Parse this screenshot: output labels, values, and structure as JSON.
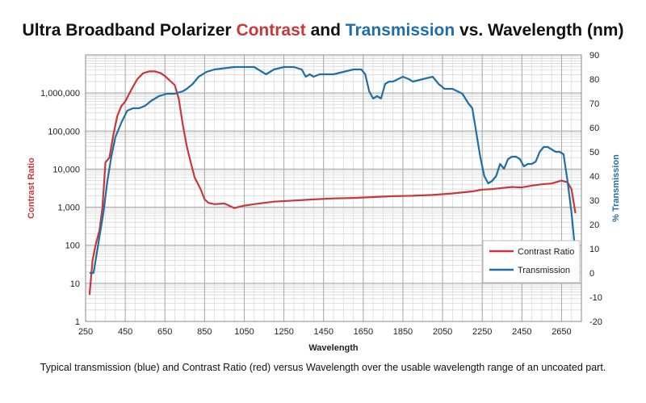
{
  "chart_data": {
    "type": "line",
    "title_parts": [
      {
        "text": "Ultra Broadband Polarizer ",
        "color": "#111111"
      },
      {
        "text": "Contrast",
        "color": "#c8373a"
      },
      {
        "text": " and ",
        "color": "#111111"
      },
      {
        "text": "Transmission",
        "color": "#1f6fa6"
      },
      {
        "text": " vs. Wavelength (nm)",
        "color": "#111111"
      }
    ],
    "xlabel": "Wavelength",
    "ylabel_left": "Contrast Ratio",
    "ylabel_right": "% Transmission",
    "xlim": [
      250,
      2750
    ],
    "ylim_left": [
      1,
      10000000
    ],
    "ylim_right": [
      -20,
      90
    ],
    "left_scale": "log",
    "x_ticks": [
      250,
      450,
      650,
      850,
      1050,
      1250,
      1450,
      1650,
      1850,
      2050,
      2250,
      2450,
      2650
    ],
    "x_tick_labels": [
      "250",
      "450",
      "650",
      "850",
      "1050",
      "1250",
      "1450",
      "1650",
      "1850",
      "2050",
      "2250",
      "2450",
      "2650"
    ],
    "y_left_ticks": [
      1,
      10,
      100,
      1000,
      10000,
      100000,
      1000000
    ],
    "y_left_tick_labels": [
      "1",
      "10",
      "100",
      "1,000",
      "10,000",
      "100,000",
      "1,000,000"
    ],
    "y_right_ticks": [
      -20,
      -10,
      0,
      10,
      20,
      30,
      40,
      50,
      60,
      70,
      80,
      90
    ],
    "y_right_tick_labels": [
      "-20",
      "-10",
      "0",
      "10",
      "20",
      "30",
      "40",
      "50",
      "60",
      "70",
      "80",
      "90"
    ],
    "grid": true,
    "legend_position": "bottom-right",
    "series": [
      {
        "name": "Contrast Ratio",
        "axis": "left",
        "color": "#c8373a",
        "x": [
          270,
          285,
          300,
          320,
          335,
          350,
          370,
          390,
          410,
          430,
          450,
          480,
          510,
          540,
          570,
          600,
          630,
          650,
          680,
          700,
          720,
          740,
          760,
          780,
          800,
          830,
          850,
          870,
          900,
          950,
          1000,
          1050,
          1100,
          1150,
          1200,
          1300,
          1400,
          1500,
          1600,
          1700,
          1800,
          1900,
          2000,
          2100,
          2200,
          2250,
          2300,
          2350,
          2400,
          2450,
          2500,
          2550,
          2600,
          2650,
          2680,
          2700,
          2720
        ],
        "y": [
          5,
          40,
          100,
          250,
          1000,
          15000,
          20000,
          80000,
          250000,
          450000,
          600000,
          1200000,
          2300000,
          3300000,
          3700000,
          3700000,
          3300000,
          2800000,
          2000000,
          1600000,
          700000,
          150000,
          40000,
          15000,
          6000,
          3000,
          1600,
          1300,
          1200,
          1250,
          950,
          1100,
          1200,
          1300,
          1400,
          1500,
          1600,
          1700,
          1750,
          1850,
          1950,
          2000,
          2100,
          2300,
          2600,
          2900,
          3000,
          3200,
          3400,
          3300,
          3700,
          4000,
          4200,
          5000,
          4500,
          3000,
          700
        ]
      },
      {
        "name": "Transmission",
        "axis": "right",
        "color": "#1f6fa6",
        "x": [
          270,
          290,
          300,
          320,
          340,
          360,
          380,
          400,
          430,
          460,
          490,
          520,
          550,
          580,
          620,
          660,
          700,
          740,
          760,
          790,
          820,
          860,
          900,
          950,
          1000,
          1050,
          1100,
          1140,
          1160,
          1200,
          1250,
          1300,
          1340,
          1360,
          1380,
          1400,
          1430,
          1460,
          1500,
          1550,
          1600,
          1640,
          1660,
          1680,
          1700,
          1720,
          1740,
          1760,
          1780,
          1800,
          1850,
          1880,
          1900,
          1950,
          2000,
          2030,
          2060,
          2100,
          2150,
          2180,
          2200,
          2220,
          2240,
          2260,
          2280,
          2300,
          2320,
          2340,
          2360,
          2380,
          2400,
          2420,
          2440,
          2460,
          2480,
          2500,
          2520,
          2540,
          2560,
          2580,
          2600,
          2620,
          2640,
          2660,
          2680,
          2700,
          2720
        ],
        "y": [
          0,
          0,
          5,
          15,
          25,
          38,
          48,
          56,
          62,
          67,
          68,
          68,
          69,
          71,
          73,
          74,
          74,
          75,
          76,
          78,
          81,
          83,
          84,
          84.5,
          85,
          85,
          85,
          83,
          82,
          84,
          85,
          85,
          84,
          81,
          82,
          81,
          82,
          82,
          82,
          83,
          84,
          84,
          82,
          75,
          72,
          73,
          72,
          78,
          79,
          79,
          81,
          80,
          79,
          80,
          81,
          78,
          76,
          76,
          74,
          70,
          68,
          58,
          48,
          40,
          37,
          38,
          40,
          45,
          43,
          47,
          48,
          48,
          47,
          44,
          45,
          45,
          46,
          50,
          52,
          52,
          51,
          50,
          50,
          49,
          38,
          25,
          8
        ]
      }
    ]
  },
  "caption": "Typical transmission (blue) and Contrast Ratio (red) versus Wavelength over the usable wavelength range of an uncoated part."
}
